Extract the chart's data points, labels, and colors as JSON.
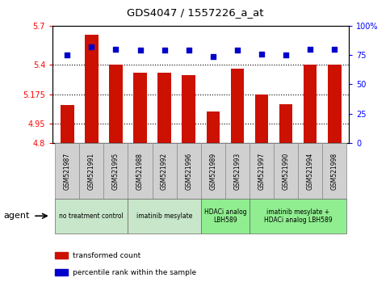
{
  "title": "GDS4047 / 1557226_a_at",
  "samples": [
    "GSM521987",
    "GSM521991",
    "GSM521995",
    "GSM521988",
    "GSM521992",
    "GSM521996",
    "GSM521989",
    "GSM521993",
    "GSM521997",
    "GSM521990",
    "GSM521994",
    "GSM521998"
  ],
  "bar_values": [
    5.09,
    5.63,
    5.4,
    5.34,
    5.34,
    5.32,
    5.04,
    5.37,
    5.175,
    5.1,
    5.4,
    5.4
  ],
  "dot_values": [
    75,
    82,
    80,
    79,
    79,
    79,
    74,
    79,
    76,
    75,
    80,
    80
  ],
  "groups": [
    {
      "label": "no treatment control",
      "indices": [
        0,
        1,
        2
      ],
      "color": "#c8e6c9"
    },
    {
      "label": "imatinib mesylate",
      "indices": [
        3,
        4,
        5
      ],
      "color": "#c8e6c9"
    },
    {
      "label": "HDACi analog\nLBH589",
      "indices": [
        6,
        7
      ],
      "color": "#90ee90"
    },
    {
      "label": "imatinib mesylate +\nHDACi analog LBH589",
      "indices": [
        8,
        9,
        10,
        11
      ],
      "color": "#90ee90"
    }
  ],
  "ylim_left": [
    4.8,
    5.7
  ],
  "ylim_right": [
    0,
    100
  ],
  "yticks_left": [
    4.8,
    4.95,
    5.175,
    5.4,
    5.7
  ],
  "yticks_right": [
    0,
    25,
    50,
    75,
    100
  ],
  "ytick_labels_left": [
    "4.8",
    "4.95",
    "5.175",
    "5.4",
    "5.7"
  ],
  "ytick_labels_right": [
    "0",
    "25",
    "50",
    "75",
    "100%"
  ],
  "hlines": [
    5.4,
    5.175,
    4.95
  ],
  "bar_color": "#cc1100",
  "dot_color": "#0000cc",
  "bar_width": 0.55,
  "agent_label": "agent"
}
